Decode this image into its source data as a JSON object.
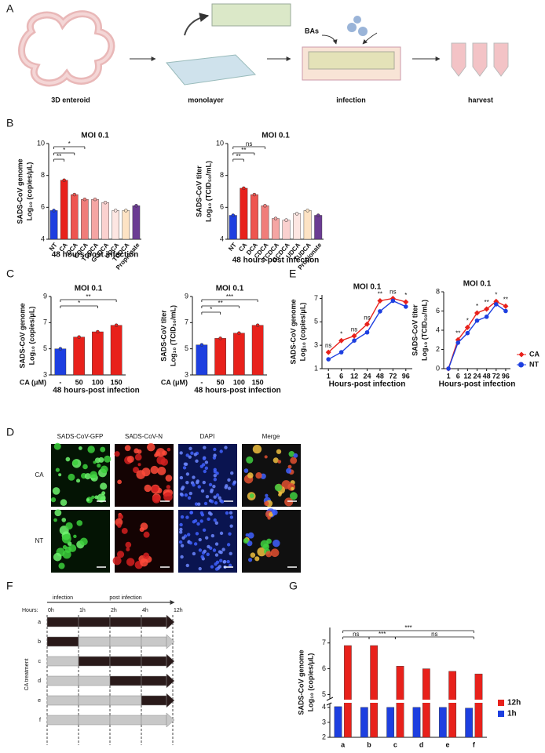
{
  "panel_labels": [
    "A",
    "B",
    "C",
    "E",
    "D",
    "F",
    "G"
  ],
  "panel_a": {
    "steps": [
      "3D enteroid",
      "monolayer",
      "infection",
      "harvest"
    ],
    "treatment": "BAs"
  },
  "panel_d": {
    "columns": [
      "SADS-CoV-GFP",
      "SADS-CoV-N",
      "DAPI",
      "Merge"
    ],
    "rows": [
      "CA",
      "NT"
    ]
  },
  "panel_f": {
    "phases": [
      "infection",
      "post infection"
    ],
    "hours_label": "Hours:",
    "hours": [
      "0h",
      "1h",
      "2h",
      "4h",
      "12h"
    ],
    "rows": [
      "a",
      "b",
      "c",
      "d",
      "e",
      "f"
    ],
    "side_label": "CA treatment"
  },
  "chart_data": [
    {
      "type": "bar",
      "title": "MOI 0.1",
      "ylabel": [
        "SADS-CoV genome",
        "Log₁₀ (copies/μL)"
      ],
      "xlabel": "48 hours-post infection",
      "categories": [
        "NT",
        "CA",
        "DCA",
        "CDCA",
        "TCDCA",
        "GCDCA",
        "UDCA",
        "TUDCA",
        "Propionate"
      ],
      "values": [
        5.8,
        7.7,
        6.8,
        6.5,
        6.5,
        6.3,
        5.8,
        5.8,
        6.1
      ],
      "colors": [
        "#1d3fe0",
        "#e8211b",
        "#ee5550",
        "#f07d7a",
        "#f5a5a3",
        "#fad1cf",
        "#fde6e2",
        "#fde3c4",
        "#6b3c93"
      ],
      "ylim": [
        4,
        10
      ],
      "yticks": [
        4,
        6,
        8,
        10
      ],
      "brackets": [
        {
          "label": "**",
          "from": "NT",
          "to": "CA"
        },
        {
          "label": "*",
          "from": "NT",
          "to": "DCA"
        },
        {
          "label": "*",
          "from": "NT",
          "to": "CDCA"
        }
      ]
    },
    {
      "type": "bar",
      "title": "MOI 0.1",
      "ylabel": [
        "SADS-CoV titer",
        "Log₁₀ (TCID₅₀/mL)"
      ],
      "xlabel": "48 hours-post infection",
      "categories": [
        "NT",
        "CA",
        "DCA",
        "CDCA",
        "TCDCA",
        "GCDCA",
        "UDCA",
        "TUDCA",
        "Propionate"
      ],
      "values": [
        5.5,
        7.2,
        6.8,
        6.1,
        5.3,
        5.2,
        5.6,
        5.8,
        5.5
      ],
      "colors": [
        "#1d3fe0",
        "#e8211b",
        "#ee5550",
        "#f07d7a",
        "#f5a5a3",
        "#fad1cf",
        "#fde6e2",
        "#fde3c4",
        "#6b3c93"
      ],
      "ylim": [
        4,
        10
      ],
      "yticks": [
        4,
        6,
        8,
        10
      ],
      "brackets": [
        {
          "label": "**",
          "from": "NT",
          "to": "CA"
        },
        {
          "label": "**",
          "from": "NT",
          "to": "DCA"
        },
        {
          "label": "ns",
          "from": "NT",
          "to": "CDCA"
        }
      ]
    },
    {
      "type": "bar",
      "title": "MOI 0.1",
      "ylabel": [
        "SADS-CoV genome",
        "Log₁₀ (copies/μL)"
      ],
      "xlabel": "48 hours-post infection",
      "xunit": "CA (μM)",
      "categories": [
        "-",
        "50",
        "100",
        "150"
      ],
      "values": [
        5.0,
        5.9,
        6.3,
        6.8
      ],
      "colors": [
        "#1d3fe0",
        "#e8211b",
        "#e8211b",
        "#e8211b"
      ],
      "ylim": [
        3,
        9
      ],
      "yticks": [
        3,
        5,
        7,
        9
      ],
      "brackets": [
        {
          "label": "*",
          "from": "-",
          "to": "100"
        },
        {
          "label": "**",
          "from": "-",
          "to": "150"
        }
      ]
    },
    {
      "type": "bar",
      "title": "MOI 0.1",
      "ylabel": [
        "SADS-CoV titer",
        "Log₁₀ (TCID₅₀/mL)"
      ],
      "xlabel": "48 hours-post infection",
      "xunit": "CA (μM)",
      "categories": [
        "-",
        "50",
        "100",
        "150"
      ],
      "values": [
        5.3,
        5.8,
        6.2,
        6.8
      ],
      "colors": [
        "#1d3fe0",
        "#e8211b",
        "#e8211b",
        "#e8211b"
      ],
      "ylim": [
        3,
        9
      ],
      "yticks": [
        3,
        5,
        7,
        9
      ],
      "brackets": [
        {
          "label": "*",
          "from": "-",
          "to": "50"
        },
        {
          "label": "**",
          "from": "-",
          "to": "100"
        },
        {
          "label": "***",
          "from": "-",
          "to": "150"
        }
      ]
    },
    {
      "type": "line",
      "title": "MOI 0.1",
      "ylabel": [
        "SADS-CoV genome",
        "Log₁₀ (copies/μL)"
      ],
      "xlabel": "Hours-post infection",
      "categories": [
        "1",
        "6",
        "12",
        "24",
        "48",
        "72",
        "96"
      ],
      "series": [
        {
          "name": "CA",
          "color": "#e8211b",
          "values": [
            2.4,
            3.4,
            3.8,
            4.8,
            6.8,
            7.0,
            6.7
          ]
        },
        {
          "name": "NT",
          "color": "#1d3fe0",
          "values": [
            1.8,
            2.4,
            3.4,
            4.1,
            5.9,
            6.8,
            6.3
          ]
        }
      ],
      "ylim": [
        1,
        7.3
      ],
      "yticks": [
        1,
        3,
        5,
        7
      ],
      "annotations": [
        "ns",
        "*",
        "ns",
        "ns",
        "**",
        "ns",
        "*"
      ]
    },
    {
      "type": "line",
      "title": "MOI 0.1",
      "ylabel": [
        "SADS-CoV titer",
        "Log₁₀ (TCID₅₀/mL)"
      ],
      "xlabel": "Hours-post infection",
      "categories": [
        "1",
        "6",
        "12",
        "24",
        "48",
        "72",
        "96"
      ],
      "series": [
        {
          "name": "CA",
          "color": "#e8211b",
          "values": [
            0,
            3.0,
            4.3,
            5.8,
            6.2,
            7.0,
            6.5
          ]
        },
        {
          "name": "NT",
          "color": "#1d3fe0",
          "values": [
            0,
            2.7,
            3.7,
            5.0,
            5.4,
            6.7,
            6.0
          ]
        }
      ],
      "ylim": [
        0,
        8
      ],
      "yticks": [
        0,
        2,
        4,
        6,
        8
      ],
      "annotations": [
        null,
        "**",
        "*",
        "*",
        "**",
        "*",
        "**"
      ],
      "legend": "right"
    },
    {
      "type": "grouped_bar",
      "ylabel": [
        "SADS-CoV genome",
        "Log₁₀ (copies/μL)"
      ],
      "categories": [
        "a",
        "b",
        "c",
        "d",
        "e",
        "f"
      ],
      "series": [
        {
          "name": "12h",
          "color": "#e8211b",
          "values": [
            6.9,
            6.9,
            6.1,
            6.0,
            5.9,
            5.8
          ]
        },
        {
          "name": "1h",
          "color": "#1d3fe0",
          "values": [
            4.05,
            4.0,
            4.0,
            4.0,
            4.0,
            3.95
          ]
        }
      ],
      "ylim": [
        2,
        7.6
      ],
      "axis_break": [
        4.2,
        4.8
      ],
      "yticks": [
        2,
        3,
        4,
        5,
        6,
        7
      ],
      "brackets": [
        {
          "label": "***",
          "from": "a",
          "to": "f"
        },
        {
          "label": "ns",
          "from": "a",
          "to": "b"
        },
        {
          "label": "***",
          "from": "b",
          "to": "c"
        },
        {
          "label": "ns",
          "from": "c",
          "to": "f"
        }
      ]
    }
  ]
}
